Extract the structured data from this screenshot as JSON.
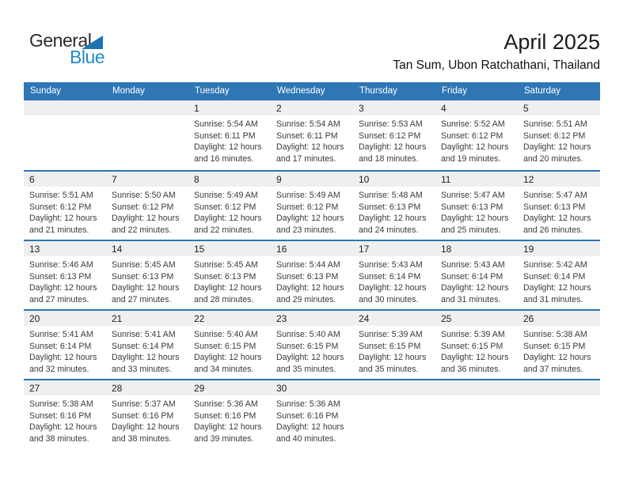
{
  "logo": {
    "general": "General",
    "blue": "Blue"
  },
  "header": {
    "title": "April 2025",
    "subtitle": "Tan Sum, Ubon Ratchathani, Thailand"
  },
  "colors": {
    "header_blue": "#2F76B5",
    "border_blue": "#2E74B5",
    "band_gray": "#EFEFEF",
    "logo_blue": "#1E8CCC",
    "logo_triangle": "#1B73B4",
    "weekday_text": "#FFFFFF"
  },
  "weekdays": [
    "Sunday",
    "Monday",
    "Tuesday",
    "Wednesday",
    "Thursday",
    "Friday",
    "Saturday"
  ],
  "weeks": [
    {
      "days": [
        {
          "num": ""
        },
        {
          "num": ""
        },
        {
          "num": "1",
          "lines": [
            "Sunrise: 5:54 AM",
            "Sunset: 6:11 PM",
            "Daylight: 12 hours",
            "and 16 minutes."
          ]
        },
        {
          "num": "2",
          "lines": [
            "Sunrise: 5:54 AM",
            "Sunset: 6:11 PM",
            "Daylight: 12 hours",
            "and 17 minutes."
          ]
        },
        {
          "num": "3",
          "lines": [
            "Sunrise: 5:53 AM",
            "Sunset: 6:12 PM",
            "Daylight: 12 hours",
            "and 18 minutes."
          ]
        },
        {
          "num": "4",
          "lines": [
            "Sunrise: 5:52 AM",
            "Sunset: 6:12 PM",
            "Daylight: 12 hours",
            "and 19 minutes."
          ]
        },
        {
          "num": "5",
          "lines": [
            "Sunrise: 5:51 AM",
            "Sunset: 6:12 PM",
            "Daylight: 12 hours",
            "and 20 minutes."
          ]
        }
      ]
    },
    {
      "days": [
        {
          "num": "6",
          "lines": [
            "Sunrise: 5:51 AM",
            "Sunset: 6:12 PM",
            "Daylight: 12 hours",
            "and 21 minutes."
          ]
        },
        {
          "num": "7",
          "lines": [
            "Sunrise: 5:50 AM",
            "Sunset: 6:12 PM",
            "Daylight: 12 hours",
            "and 22 minutes."
          ]
        },
        {
          "num": "8",
          "lines": [
            "Sunrise: 5:49 AM",
            "Sunset: 6:12 PM",
            "Daylight: 12 hours",
            "and 22 minutes."
          ]
        },
        {
          "num": "9",
          "lines": [
            "Sunrise: 5:49 AM",
            "Sunset: 6:12 PM",
            "Daylight: 12 hours",
            "and 23 minutes."
          ]
        },
        {
          "num": "10",
          "lines": [
            "Sunrise: 5:48 AM",
            "Sunset: 6:13 PM",
            "Daylight: 12 hours",
            "and 24 minutes."
          ]
        },
        {
          "num": "11",
          "lines": [
            "Sunrise: 5:47 AM",
            "Sunset: 6:13 PM",
            "Daylight: 12 hours",
            "and 25 minutes."
          ]
        },
        {
          "num": "12",
          "lines": [
            "Sunrise: 5:47 AM",
            "Sunset: 6:13 PM",
            "Daylight: 12 hours",
            "and 26 minutes."
          ]
        }
      ]
    },
    {
      "days": [
        {
          "num": "13",
          "lines": [
            "Sunrise: 5:46 AM",
            "Sunset: 6:13 PM",
            "Daylight: 12 hours",
            "and 27 minutes."
          ]
        },
        {
          "num": "14",
          "lines": [
            "Sunrise: 5:45 AM",
            "Sunset: 6:13 PM",
            "Daylight: 12 hours",
            "and 27 minutes."
          ]
        },
        {
          "num": "15",
          "lines": [
            "Sunrise: 5:45 AM",
            "Sunset: 6:13 PM",
            "Daylight: 12 hours",
            "and 28 minutes."
          ]
        },
        {
          "num": "16",
          "lines": [
            "Sunrise: 5:44 AM",
            "Sunset: 6:13 PM",
            "Daylight: 12 hours",
            "and 29 minutes."
          ]
        },
        {
          "num": "17",
          "lines": [
            "Sunrise: 5:43 AM",
            "Sunset: 6:14 PM",
            "Daylight: 12 hours",
            "and 30 minutes."
          ]
        },
        {
          "num": "18",
          "lines": [
            "Sunrise: 5:43 AM",
            "Sunset: 6:14 PM",
            "Daylight: 12 hours",
            "and 31 minutes."
          ]
        },
        {
          "num": "19",
          "lines": [
            "Sunrise: 5:42 AM",
            "Sunset: 6:14 PM",
            "Daylight: 12 hours",
            "and 31 minutes."
          ]
        }
      ]
    },
    {
      "days": [
        {
          "num": "20",
          "lines": [
            "Sunrise: 5:41 AM",
            "Sunset: 6:14 PM",
            "Daylight: 12 hours",
            "and 32 minutes."
          ]
        },
        {
          "num": "21",
          "lines": [
            "Sunrise: 5:41 AM",
            "Sunset: 6:14 PM",
            "Daylight: 12 hours",
            "and 33 minutes."
          ]
        },
        {
          "num": "22",
          "lines": [
            "Sunrise: 5:40 AM",
            "Sunset: 6:15 PM",
            "Daylight: 12 hours",
            "and 34 minutes."
          ]
        },
        {
          "num": "23",
          "lines": [
            "Sunrise: 5:40 AM",
            "Sunset: 6:15 PM",
            "Daylight: 12 hours",
            "and 35 minutes."
          ]
        },
        {
          "num": "24",
          "lines": [
            "Sunrise: 5:39 AM",
            "Sunset: 6:15 PM",
            "Daylight: 12 hours",
            "and 35 minutes."
          ]
        },
        {
          "num": "25",
          "lines": [
            "Sunrise: 5:39 AM",
            "Sunset: 6:15 PM",
            "Daylight: 12 hours",
            "and 36 minutes."
          ]
        },
        {
          "num": "26",
          "lines": [
            "Sunrise: 5:38 AM",
            "Sunset: 6:15 PM",
            "Daylight: 12 hours",
            "and 37 minutes."
          ]
        }
      ]
    },
    {
      "days": [
        {
          "num": "27",
          "lines": [
            "Sunrise: 5:38 AM",
            "Sunset: 6:16 PM",
            "Daylight: 12 hours",
            "and 38 minutes."
          ]
        },
        {
          "num": "28",
          "lines": [
            "Sunrise: 5:37 AM",
            "Sunset: 6:16 PM",
            "Daylight: 12 hours",
            "and 38 minutes."
          ]
        },
        {
          "num": "29",
          "lines": [
            "Sunrise: 5:36 AM",
            "Sunset: 6:16 PM",
            "Daylight: 12 hours",
            "and 39 minutes."
          ]
        },
        {
          "num": "30",
          "lines": [
            "Sunrise: 5:36 AM",
            "Sunset: 6:16 PM",
            "Daylight: 12 hours",
            "and 40 minutes."
          ]
        },
        {
          "num": ""
        },
        {
          "num": ""
        },
        {
          "num": ""
        }
      ]
    }
  ]
}
